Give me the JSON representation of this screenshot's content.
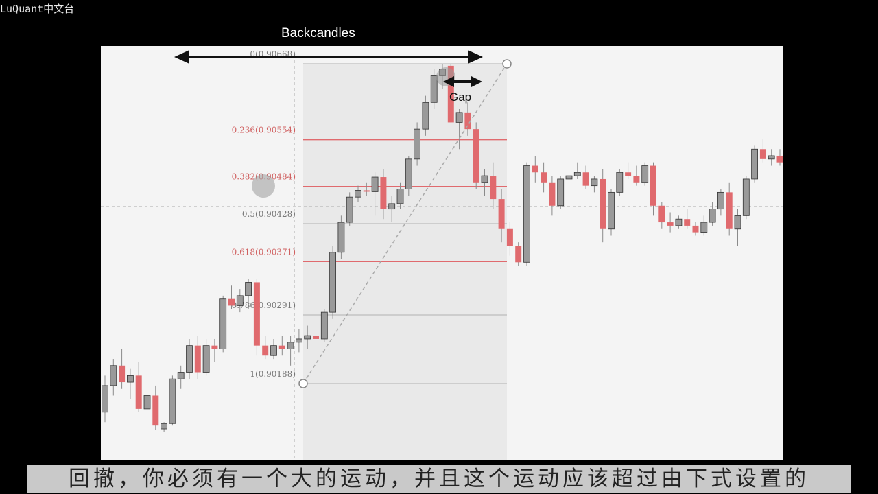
{
  "brand": "LuQuant中文台",
  "heading": "Backcandles",
  "subtitle": "回撤，你必须有一个大的运动，并且这个运动应该超过由下式设置的",
  "colors": {
    "bull": "#9a9a9a",
    "bear": "#e06a6e",
    "fib_line": "#e06a6e",
    "grid": "#bdbdbd",
    "panel": "#f4f4f4"
  },
  "chart_data": {
    "type": "candlestick",
    "ylim": [
      0.9012,
      0.907
    ],
    "fib_levels": [
      {
        "ratio": "0",
        "price": 0.90668,
        "label": "0(0.90668)",
        "color": "gray"
      },
      {
        "ratio": "0.236",
        "price": 0.90554,
        "label": "0.236(0.90554)",
        "color": "red"
      },
      {
        "ratio": "0.382",
        "price": 0.90484,
        "label": "0.382(0.90484)",
        "color": "red"
      },
      {
        "ratio": "0.5",
        "price": 0.90428,
        "label": "0.5(0.90428)",
        "color": "gray"
      },
      {
        "ratio": "0.618",
        "price": 0.90371,
        "label": "0.618(0.90371)",
        "color": "red"
      },
      {
        "ratio": "0.786",
        "price": 0.90291,
        "label": "0.786(0.90291)",
        "color": "gray"
      },
      {
        "ratio": "1",
        "price": 0.90188,
        "label": "1(0.90188)",
        "color": "gray"
      }
    ],
    "annotations": {
      "backcandles": "Backcandles",
      "gap": "Gap"
    },
    "candles": [
      [
        0.90145,
        0.902,
        0.9013,
        0.90185
      ],
      [
        0.90185,
        0.90225,
        0.9017,
        0.90215
      ],
      [
        0.90215,
        0.9024,
        0.9018,
        0.9019
      ],
      [
        0.9019,
        0.9021,
        0.90165,
        0.902
      ],
      [
        0.902,
        0.9022,
        0.90145,
        0.9015
      ],
      [
        0.9015,
        0.9018,
        0.9013,
        0.9017
      ],
      [
        0.9017,
        0.90185,
        0.90118,
        0.90125
      ],
      [
        0.9012,
        0.9013,
        0.90115,
        0.90128
      ],
      [
        0.90128,
        0.902,
        0.90125,
        0.90195
      ],
      [
        0.90195,
        0.90215,
        0.9018,
        0.90205
      ],
      [
        0.90205,
        0.90255,
        0.90195,
        0.90245
      ],
      [
        0.90245,
        0.9026,
        0.90195,
        0.90205
      ],
      [
        0.90205,
        0.90255,
        0.902,
        0.90245
      ],
      [
        0.90245,
        0.90255,
        0.9022,
        0.9024
      ],
      [
        0.9024,
        0.9032,
        0.90235,
        0.90315
      ],
      [
        0.90315,
        0.90335,
        0.903,
        0.90305
      ],
      [
        0.90305,
        0.9033,
        0.90295,
        0.9032
      ],
      [
        0.9032,
        0.90345,
        0.903,
        0.9034
      ],
      [
        0.9034,
        0.90345,
        0.9023,
        0.90245
      ],
      [
        0.90245,
        0.9026,
        0.90225,
        0.9023
      ],
      [
        0.9023,
        0.90255,
        0.90225,
        0.90245
      ],
      [
        0.90245,
        0.9026,
        0.9023,
        0.9024
      ],
      [
        0.9024,
        0.9026,
        0.90215,
        0.9025
      ],
      [
        0.9025,
        0.9027,
        0.90235,
        0.90255
      ],
      [
        0.90255,
        0.90275,
        0.9024,
        0.9026
      ],
      [
        0.9026,
        0.9028,
        0.9025,
        0.90255
      ],
      [
        0.90255,
        0.903,
        0.9025,
        0.90295
      ],
      [
        0.90295,
        0.90395,
        0.90285,
        0.90385
      ],
      [
        0.90385,
        0.9044,
        0.90375,
        0.9043
      ],
      [
        0.9043,
        0.90475,
        0.90425,
        0.90468
      ],
      [
        0.90468,
        0.90485,
        0.9046,
        0.90478
      ],
      [
        0.90478,
        0.9049,
        0.9047,
        0.90476
      ],
      [
        0.90476,
        0.90505,
        0.9044,
        0.90498
      ],
      [
        0.90498,
        0.9051,
        0.90435,
        0.9045
      ],
      [
        0.9045,
        0.9047,
        0.9043,
        0.90458
      ],
      [
        0.90458,
        0.9049,
        0.9045,
        0.9048
      ],
      [
        0.9048,
        0.9053,
        0.9047,
        0.90525
      ],
      [
        0.90525,
        0.9058,
        0.90515,
        0.9057
      ],
      [
        0.9057,
        0.9062,
        0.9056,
        0.9061
      ],
      [
        0.9061,
        0.9066,
        0.906,
        0.9065
      ],
      [
        0.9065,
        0.90668,
        0.9063,
        0.9066
      ],
      [
        0.90665,
        0.90668,
        0.9058,
        0.9058
      ],
      [
        0.9058,
        0.906,
        0.9054,
        0.90595
      ],
      [
        0.90595,
        0.9061,
        0.9056,
        0.9057
      ],
      [
        0.9057,
        0.9058,
        0.9048,
        0.9049
      ],
      [
        0.9049,
        0.9051,
        0.9047,
        0.905
      ],
      [
        0.905,
        0.9052,
        0.9045,
        0.90465
      ],
      [
        0.90465,
        0.9048,
        0.904,
        0.9042
      ],
      [
        0.9042,
        0.9043,
        0.9038,
        0.90395
      ],
      [
        0.90395,
        0.904,
        0.90365,
        0.9037
      ],
      [
        0.9037,
        0.9052,
        0.90365,
        0.90515
      ],
      [
        0.90515,
        0.9053,
        0.9049,
        0.90505
      ],
      [
        0.90505,
        0.9052,
        0.90475,
        0.9049
      ],
      [
        0.9049,
        0.905,
        0.9044,
        0.90455
      ],
      [
        0.90455,
        0.905,
        0.9045,
        0.90495
      ],
      [
        0.90495,
        0.9051,
        0.9047,
        0.905
      ],
      [
        0.905,
        0.9052,
        0.90495,
        0.90505
      ],
      [
        0.90505,
        0.90515,
        0.9048,
        0.90485
      ],
      [
        0.90485,
        0.905,
        0.90475,
        0.90495
      ],
      [
        0.90495,
        0.9051,
        0.904,
        0.9042
      ],
      [
        0.9042,
        0.9048,
        0.9041,
        0.90475
      ],
      [
        0.90475,
        0.9051,
        0.9047,
        0.90505
      ],
      [
        0.90505,
        0.9052,
        0.90495,
        0.905
      ],
      [
        0.905,
        0.90515,
        0.90485,
        0.9049
      ],
      [
        0.9049,
        0.9052,
        0.90485,
        0.90515
      ],
      [
        0.90515,
        0.9052,
        0.9044,
        0.90455
      ],
      [
        0.90455,
        0.9046,
        0.9042,
        0.9043
      ],
      [
        0.9043,
        0.90445,
        0.90415,
        0.90425
      ],
      [
        0.90425,
        0.9044,
        0.9042,
        0.90435
      ],
      [
        0.90435,
        0.9045,
        0.9042,
        0.90425
      ],
      [
        0.90425,
        0.9043,
        0.9041,
        0.90415
      ],
      [
        0.90415,
        0.9044,
        0.9041,
        0.9043
      ],
      [
        0.9043,
        0.9046,
        0.90425,
        0.9045
      ],
      [
        0.9045,
        0.9048,
        0.9044,
        0.90475
      ],
      [
        0.90475,
        0.9049,
        0.9041,
        0.9042
      ],
      [
        0.9042,
        0.9045,
        0.90395,
        0.9044
      ],
      [
        0.9044,
        0.905,
        0.90435,
        0.90495
      ],
      [
        0.90495,
        0.90545,
        0.9049,
        0.9054
      ],
      [
        0.9054,
        0.90555,
        0.9052,
        0.90525
      ],
      [
        0.90525,
        0.9054,
        0.90515,
        0.9053
      ],
      [
        0.9053,
        0.9054,
        0.90515,
        0.9052
      ]
    ]
  }
}
